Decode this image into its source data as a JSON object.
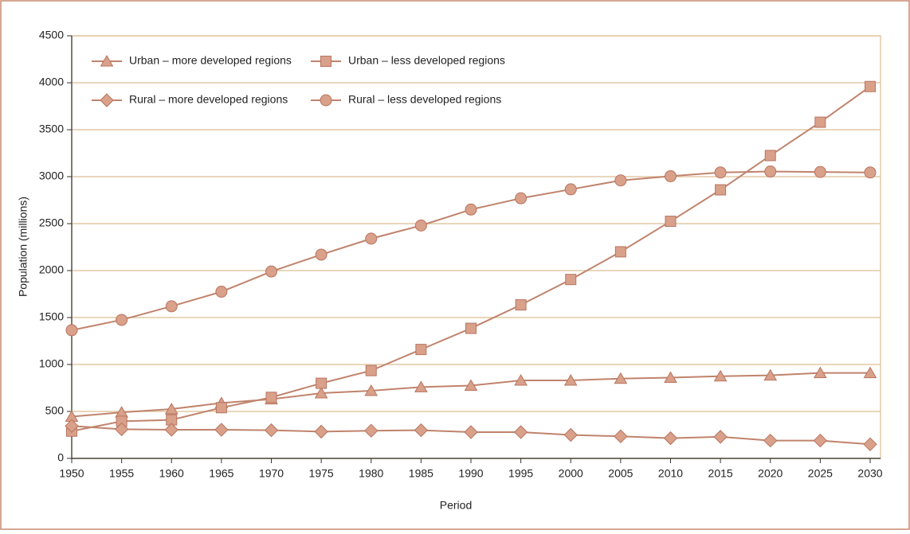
{
  "chart_data": {
    "type": "line",
    "xlabel": "Period",
    "ylabel": "Population (millions)",
    "x": [
      1950,
      1955,
      1960,
      1965,
      1970,
      1975,
      1980,
      1985,
      1990,
      1995,
      2000,
      2005,
      2010,
      2015,
      2020,
      2025,
      2030
    ],
    "xlim": [
      1950,
      2030
    ],
    "xticks": [
      1950,
      1955,
      1960,
      1965,
      1970,
      1975,
      1980,
      1985,
      1990,
      1995,
      2000,
      2005,
      2010,
      2015,
      2020,
      2025,
      2030
    ],
    "ylim": [
      0,
      4500
    ],
    "yticks": [
      0,
      500,
      1000,
      1500,
      2000,
      2500,
      3000,
      3500,
      4000,
      4500
    ],
    "grid": true,
    "legend": "upper left",
    "series": [
      {
        "name": "Urban – more developed regions",
        "color": "#c0836c",
        "marker": "triangle",
        "values": [
          445,
          490,
          525,
          590,
          630,
          695,
          720,
          760,
          775,
          830,
          830,
          850,
          860,
          875,
          885,
          910,
          910
        ]
      },
      {
        "name": "Urban – less developed regions",
        "color": "#c0836c",
        "marker": "square",
        "values": [
          290,
          395,
          410,
          540,
          650,
          800,
          935,
          1160,
          1385,
          1635,
          1905,
          2200,
          2525,
          2860,
          3225,
          3580,
          3960
        ]
      },
      {
        "name": "Rural – more developed regions",
        "color": "#c0836c",
        "marker": "diamond",
        "values": [
          345,
          310,
          305,
          305,
          300,
          285,
          295,
          300,
          280,
          280,
          250,
          235,
          215,
          230,
          190,
          190,
          150
        ]
      },
      {
        "name": "Rural – less developed regions",
        "color": "#c0836c",
        "marker": "circle",
        "values": [
          1365,
          1475,
          1620,
          1775,
          1990,
          2170,
          2340,
          2480,
          2650,
          2770,
          2865,
          2960,
          3005,
          3045,
          3055,
          3050,
          3045
        ]
      }
    ]
  }
}
